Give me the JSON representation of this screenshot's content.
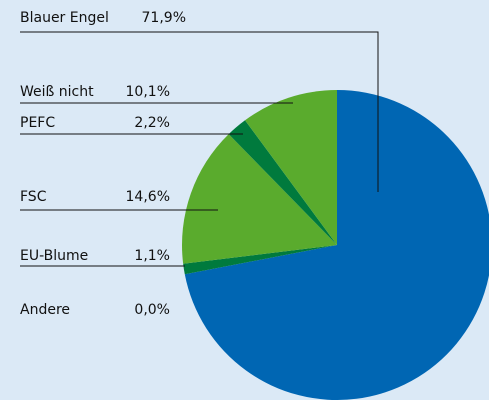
{
  "chart_data": {
    "type": "pie",
    "categories": [
      "Blauer Engel",
      "Andere",
      "EU-Blume",
      "FSC",
      "PEFC",
      "Weiß nicht"
    ],
    "values": [
      71.9,
      0.0,
      1.1,
      14.6,
      2.2,
      10.1
    ],
    "value_labels": [
      "71,9%",
      "0,0%",
      "1,1%",
      "14,6%",
      "2,2%",
      "10,1%"
    ],
    "colors": [
      "#0066b3",
      "#007a3d",
      "#007a3d",
      "#5aab2d",
      "#007a3d",
      "#5aab2d"
    ]
  }
}
